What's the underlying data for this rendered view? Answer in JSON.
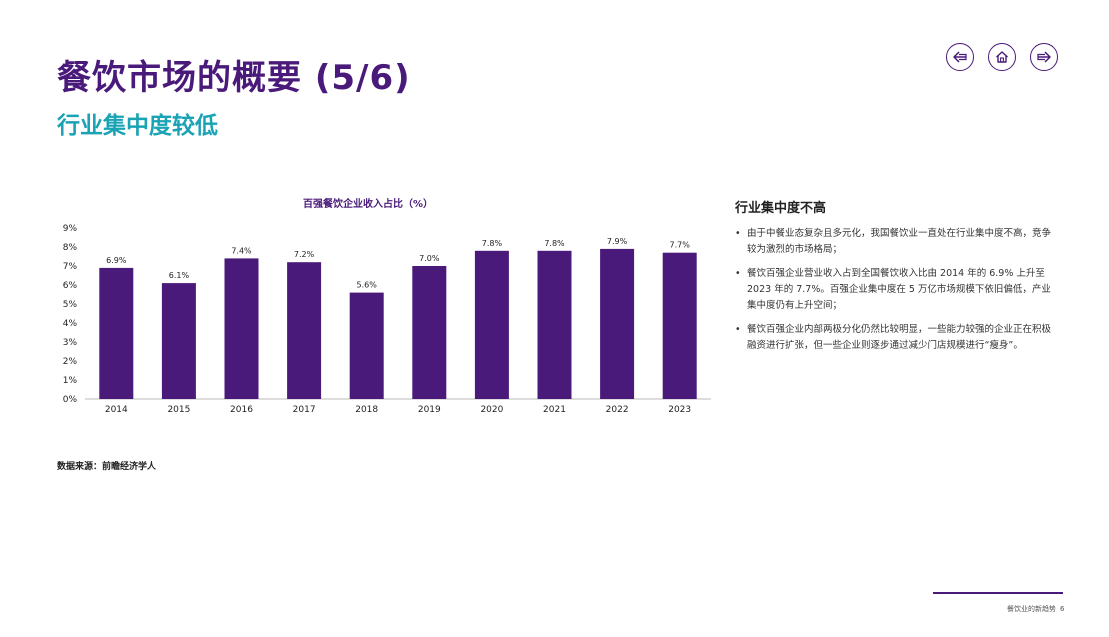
{
  "header": {
    "title": "餐饮市场的概要 (5/6)",
    "subtitle": "行业集中度较低"
  },
  "nav": {
    "back_icon": "arrow-left-icon",
    "home_icon": "home-icon",
    "forward_icon": "arrow-right-icon",
    "accent_color": "#4a1a7a"
  },
  "chart_data": {
    "type": "bar",
    "title": "百强餐饮企业收入占比（%）",
    "categories": [
      "2014",
      "2015",
      "2016",
      "2017",
      "2018",
      "2019",
      "2020",
      "2021",
      "2022",
      "2023"
    ],
    "values": [
      6.9,
      6.1,
      7.4,
      7.2,
      5.6,
      7.0,
      7.8,
      7.8,
      7.9,
      7.7
    ],
    "data_labels": [
      "6.9%",
      "6.1%",
      "7.4%",
      "7.2%",
      "5.6%",
      "7.0%",
      "7.8%",
      "7.8%",
      "7.9%",
      "7.7%"
    ],
    "yticks": [
      "0%",
      "1%",
      "2%",
      "3%",
      "4%",
      "5%",
      "6%",
      "7%",
      "8%",
      "9%"
    ],
    "ylim": [
      0,
      9
    ],
    "grid": false,
    "bar_color": "#4a1a7a"
  },
  "side": {
    "heading": "行业集中度不高",
    "bullets": [
      "由于中餐业态复杂且多元化，我国餐饮业一直处在行业集中度不高，竞争较为激烈的市场格局；",
      "餐饮百强企业营业收入占到全国餐饮收入比由 2014 年的 6.9% 上升至 2023 年的 7.7%。百强企业集中度在 5 万亿市场规模下依旧偏低，产业集中度仍有上升空间；",
      "餐饮百强企业内部两极分化仍然比较明显，一些能力较强的企业正在积极融资进行扩张，但一些企业则逐步通过减少门店规模进行“瘦身”。"
    ]
  },
  "source": "数据来源：前瞻经济学人",
  "footer": {
    "text": "餐饮业的新趋势",
    "page": "6"
  }
}
